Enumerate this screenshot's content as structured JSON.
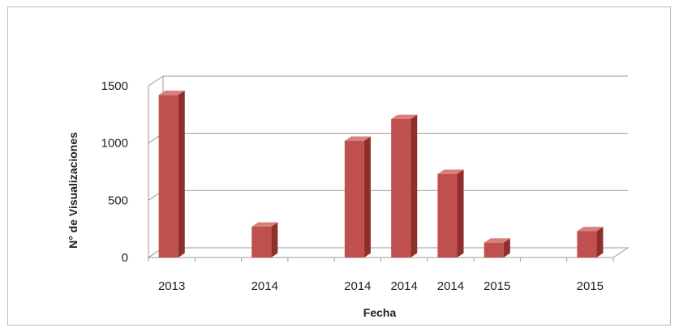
{
  "chart_data": {
    "type": "bar",
    "categories": [
      "2013",
      "",
      "2014",
      "",
      "2014",
      "2014",
      "2014",
      "2015",
      "",
      "2015"
    ],
    "values": [
      1420,
      null,
      270,
      null,
      1020,
      1210,
      730,
      130,
      null,
      230
    ],
    "xlabel": "Fecha",
    "ylabel": "N° de Visualizaciones",
    "ylim": [
      0,
      1500
    ],
    "yticks": [
      0,
      500,
      1000,
      1500
    ],
    "grid": true,
    "legend": "none"
  },
  "colors": {
    "bar_front": "#c0504d",
    "bar_side": "#8e2f2c",
    "bar_top": "#d9807d",
    "grid": "#9a9a9a"
  }
}
